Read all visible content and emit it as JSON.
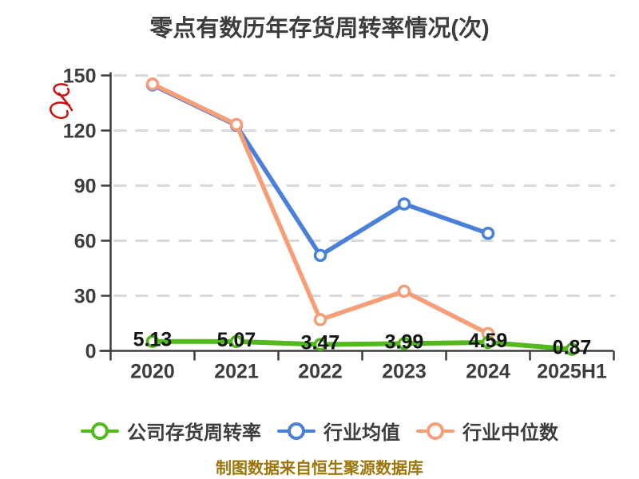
{
  "title": "零点有数历年存货周转率情况(次)",
  "footer": {
    "text": "制图数据来自恒生聚源数据库",
    "color": "#9c750c"
  },
  "watermark": {
    "name": "red-seal-mark",
    "color": "#cc1010"
  },
  "axis": {
    "line_color": "#3d3d3d",
    "grid_color": "#d9d9d9",
    "tick_label_color": "#3d3d3d"
  },
  "chart_data": {
    "type": "line",
    "title": "零点有数历年存货周转率情况(次)",
    "categories": [
      "2020",
      "2021",
      "2022",
      "2023",
      "2024",
      "2025H1"
    ],
    "yticks": [
      0,
      30,
      60,
      90,
      120,
      150
    ],
    "ylim": [
      0,
      150
    ],
    "grid": "horizontal-dashed",
    "legend_position": "bottom",
    "data_label_color": "#141414",
    "series": [
      {
        "key": "company-inventory-turnover",
        "name": "公司存货周转率",
        "color": "#53b81b",
        "values": [
          5.13,
          5.07,
          3.47,
          3.99,
          4.59,
          0.87
        ],
        "data_labels": [
          "5.13",
          "5.07",
          "3.47",
          "3.99",
          "4.59",
          "0.87"
        ]
      },
      {
        "key": "industry-mean",
        "name": "行业均值",
        "color": "#4a80d9",
        "values": [
          144.8,
          122.8,
          52,
          80,
          64,
          null
        ]
      },
      {
        "key": "industry-median",
        "name": "行业中位数",
        "color": "#f59e78",
        "values": [
          145.3,
          123.3,
          17,
          32.5,
          9.4,
          null
        ]
      }
    ]
  }
}
